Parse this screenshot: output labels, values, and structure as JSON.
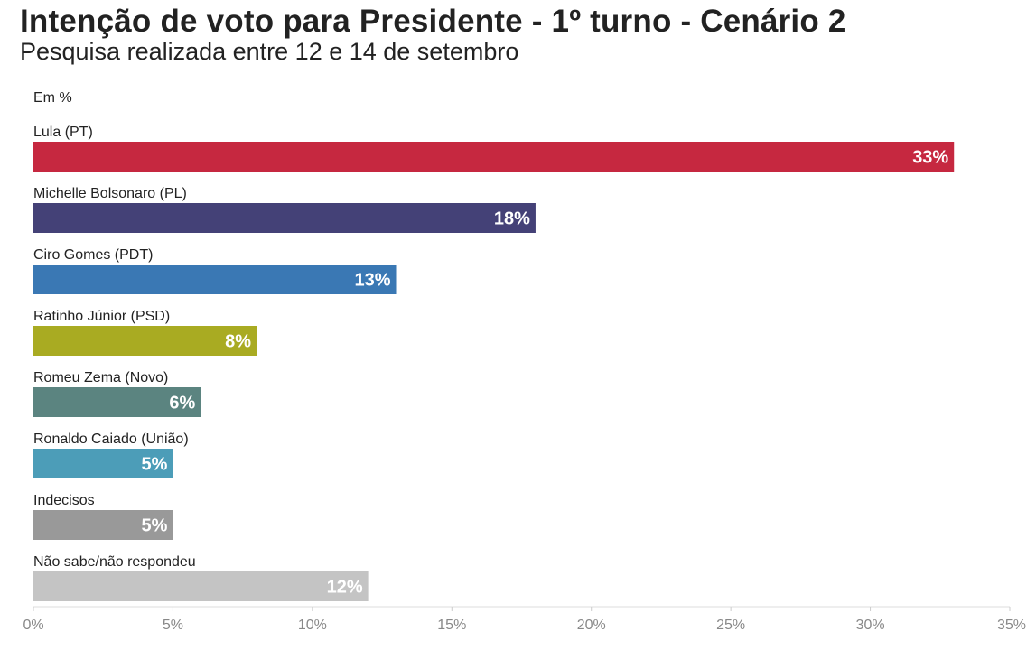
{
  "chart_data": {
    "type": "bar",
    "orientation": "horizontal",
    "title": "Intenção de voto para Presidente - 1º turno - Cenário 2",
    "subtitle": "Pesquisa realizada entre 12 e 14 de setembro",
    "unit_label": "Em %",
    "categories": [
      "Lula (PT)",
      "Michelle Bolsonaro (PL)",
      "Ciro Gomes (PDT)",
      "Ratinho Júnior (PSD)",
      "Romeu Zema (Novo)",
      "Ronaldo Caiado (União)",
      "Indecisos",
      "Não sabe/não respondeu"
    ],
    "values": [
      33,
      18,
      13,
      8,
      6,
      5,
      5,
      12
    ],
    "value_labels": [
      "33%",
      "18%",
      "13%",
      "8%",
      "6%",
      "5%",
      "5%",
      "12%"
    ],
    "colors": [
      "#c62840",
      "#444177",
      "#3a78b4",
      "#a9ab22",
      "#5b8480",
      "#4c9db8",
      "#999999",
      "#c4c4c4"
    ],
    "xlim": [
      0,
      35
    ],
    "x_ticks": [
      0,
      5,
      10,
      15,
      20,
      25,
      30,
      35
    ],
    "x_tick_labels": [
      "0%",
      "5%",
      "10%",
      "15%",
      "20%",
      "25%",
      "30%",
      "35%"
    ],
    "grid": false
  }
}
